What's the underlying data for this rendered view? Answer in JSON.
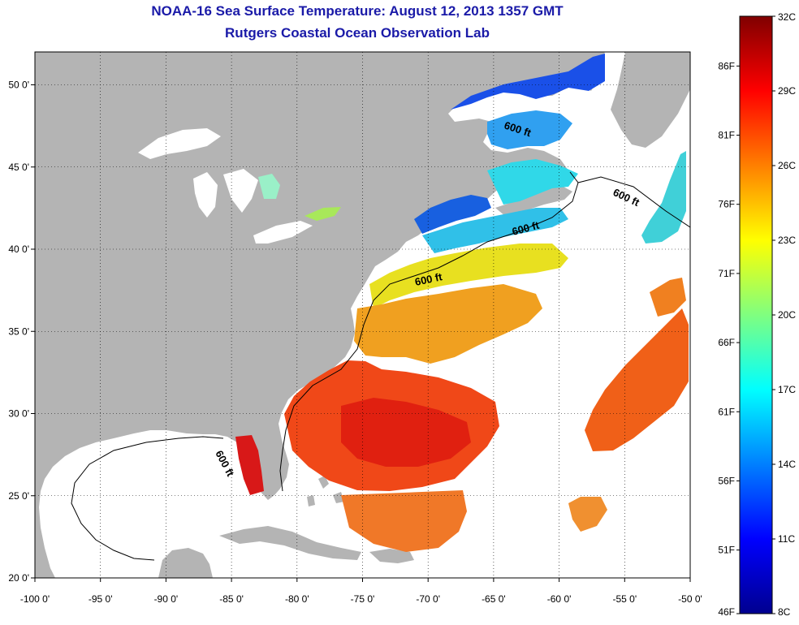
{
  "title": "NOAA-16 Sea Surface Temperature:  August 12, 2013 1357 GMT",
  "subtitle": "Rutgers Coastal Ocean Observation Lab",
  "map": {
    "lon_range": [
      -100,
      -50
    ],
    "lat_range": [
      20,
      52
    ],
    "x_ticks": [
      "-100 0'",
      "-95 0'",
      "-90 0'",
      "-85 0'",
      "-80 0'",
      "-75 0'",
      "-70 0'",
      "-65 0'",
      "-60 0'",
      "-55 0'",
      "-50 0'"
    ],
    "y_ticks": [
      "50 0'",
      "45 0'",
      "40 0'",
      "35 0'",
      "30 0'",
      "25 0'",
      "20 0'"
    ],
    "x_tick_values": [
      -100,
      -95,
      -90,
      -85,
      -80,
      -75,
      -70,
      -65,
      -60,
      -55,
      -50
    ],
    "y_tick_values": [
      50,
      45,
      40,
      35,
      30,
      25,
      20
    ],
    "contour_label": "600 ft",
    "land_color": "#b4b4b4",
    "no_data_color": "#ffffff"
  },
  "colorbar": {
    "celsius_labels": [
      "32C",
      "29C",
      "26C",
      "23C",
      "20C",
      "17C",
      "14C",
      "11C",
      "8C"
    ],
    "celsius_values": [
      32,
      29,
      26,
      23,
      20,
      17,
      14,
      11,
      8
    ],
    "fahrenheit_labels": [
      "86F",
      "81F",
      "76F",
      "71F",
      "66F",
      "61F",
      "56F",
      "51F",
      "46F"
    ],
    "fahrenheit_values": [
      86,
      81,
      76,
      71,
      66,
      61,
      56,
      51,
      46
    ]
  }
}
